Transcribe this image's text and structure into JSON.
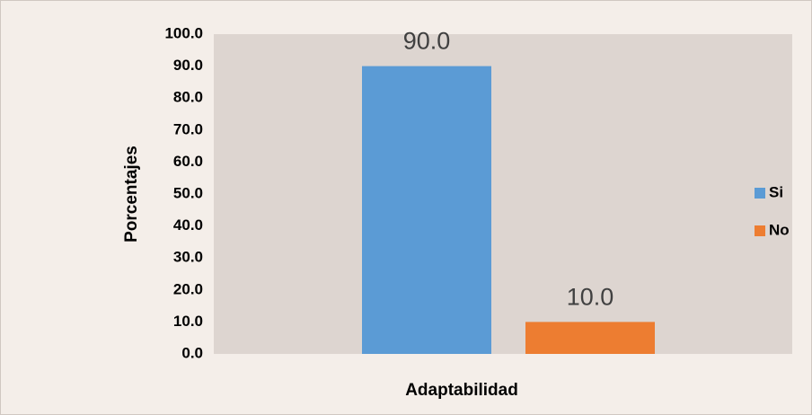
{
  "chart_data": {
    "type": "bar",
    "categories": [
      "Adaptabilidad"
    ],
    "y_label": "Porcentajes",
    "series": [
      {
        "name": "Si",
        "color": "#5b9bd5",
        "values": [
          90.0
        ],
        "value_labels": [
          "90.0"
        ]
      },
      {
        "name": "No",
        "color": "#ed7d31",
        "values": [
          10.0
        ],
        "value_labels": [
          "10.0"
        ]
      }
    ],
    "ylim": [
      0,
      100
    ],
    "yticks": [
      {
        "value": 0,
        "label": "0.0"
      },
      {
        "value": 10,
        "label": "10.0"
      },
      {
        "value": 20,
        "label": "20.0"
      },
      {
        "value": 30,
        "label": "30.0"
      },
      {
        "value": 40,
        "label": "40.0"
      },
      {
        "value": 50,
        "label": "50.0"
      },
      {
        "value": 60,
        "label": "60.0"
      },
      {
        "value": 70,
        "label": "70.0"
      },
      {
        "value": 80,
        "label": "80.0"
      },
      {
        "value": 90,
        "label": "90.0"
      },
      {
        "value": 100,
        "label": "100.0"
      }
    ],
    "grid": false,
    "legend": "right"
  }
}
